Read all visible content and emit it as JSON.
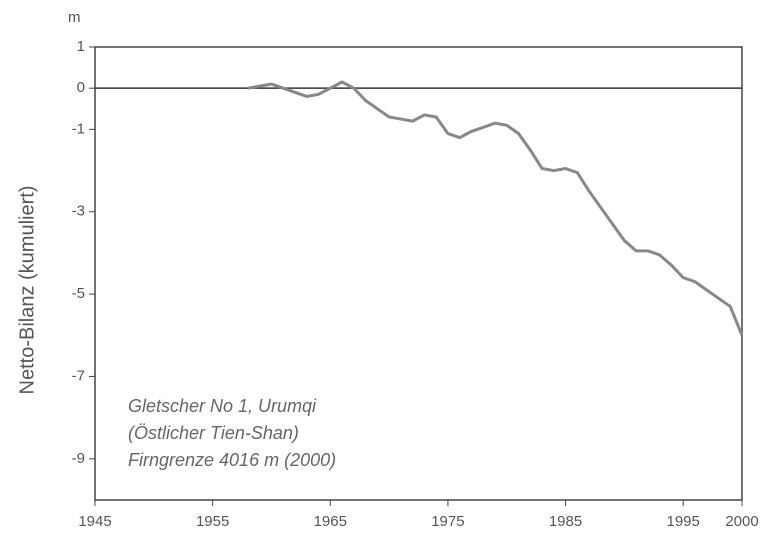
{
  "chart_data": {
    "type": "line",
    "unit": "m",
    "y_label": "Netto-Bilanz (kumuliert)",
    "annotations": [
      "Gletscher No 1, Urumqi",
      "(Östlicher Tien-Shan)",
      "Firngrenze 4016 m (2000)"
    ],
    "x": [
      1958,
      1959,
      1960,
      1961,
      1962,
      1963,
      1964,
      1965,
      1966,
      1967,
      1968,
      1969,
      1970,
      1971,
      1972,
      1973,
      1974,
      1975,
      1976,
      1977,
      1978,
      1979,
      1980,
      1981,
      1982,
      1983,
      1984,
      1985,
      1986,
      1987,
      1988,
      1989,
      1990,
      1991,
      1992,
      1993,
      1994,
      1995,
      1996,
      1997,
      1998,
      1999,
      2000
    ],
    "series": [
      {
        "color": "#888888",
        "values": [
          0,
          0.05,
          0.1,
          0.0,
          -0.1,
          -0.2,
          -0.15,
          0.0,
          0.15,
          0.0,
          -0.3,
          -0.5,
          -0.7,
          -0.75,
          -0.8,
          -0.65,
          -0.7,
          -1.1,
          -1.2,
          -1.05,
          -0.95,
          -0.85,
          -0.9,
          -1.1,
          -1.5,
          -1.95,
          -2.0,
          -1.95,
          -2.05,
          -2.5,
          -2.9,
          -3.3,
          -3.7,
          -3.95,
          -3.95,
          -4.05,
          -4.3,
          -4.6,
          -4.7,
          -4.9,
          -5.1,
          -5.3,
          -6.0
        ]
      }
    ],
    "xlim": [
      1945,
      2000
    ],
    "xticks": [
      1945,
      1955,
      1965,
      1975,
      1985,
      1995,
      2000
    ],
    "ylim": [
      -10,
      1
    ],
    "yticks": [
      1,
      0,
      -1,
      -3,
      -5,
      -7,
      -9
    ]
  }
}
